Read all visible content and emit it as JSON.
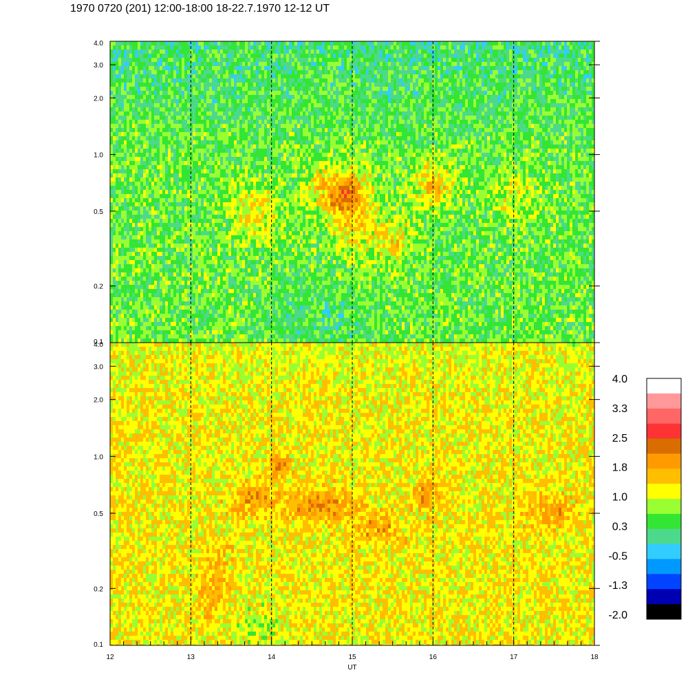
{
  "title": "1970 0720 (201) 12:00-18:00 18-22.7.1970  12-12 UT",
  "chart_data": {
    "type": "heatmap",
    "title": "1970 0720 (201) 12:00-18:00 18-22.7.1970  12-12 UT",
    "xlabel": "UT",
    "xlim": [
      12,
      18
    ],
    "x_ticks": [
      "12",
      "13",
      "14",
      "15",
      "16",
      "17",
      "18"
    ],
    "x_dashed_lines": [
      13,
      14,
      15,
      16,
      17
    ],
    "y_scale": "log",
    "panels": [
      {
        "name": "upper",
        "ylim": [
          0.1,
          4.0
        ],
        "y_ticks": [
          "4.0",
          "3.0",
          "2.0",
          "1.0",
          "0.5",
          "0.2",
          "0.1"
        ],
        "approx_level_range": [
          -1.3,
          1.8
        ]
      },
      {
        "name": "lower",
        "ylim": [
          0.1,
          4.0
        ],
        "y_ticks": [
          "4.0",
          "3.0",
          "2.0",
          "1.0",
          "0.5",
          "0.2",
          "0.1"
        ],
        "approx_level_range": [
          0.3,
          2.5
        ]
      }
    ],
    "colorbar": {
      "labels": [
        "4.0",
        "3.3",
        "2.5",
        "1.8",
        "1.0",
        "0.3",
        "-0.5",
        "-1.3",
        "-2.0"
      ],
      "colors": [
        "#ffffff",
        "#ff9999",
        "#ff6666",
        "#ff3333",
        "#d96d00",
        "#ff9a00",
        "#ffbe00",
        "#ffff00",
        "#99ff33",
        "#33e633",
        "#4dd98c",
        "#33ccff",
        "#0099ff",
        "#0044ff",
        "#0000b3",
        "#000000"
      ],
      "range": [
        -2.0,
        4.0
      ]
    }
  }
}
